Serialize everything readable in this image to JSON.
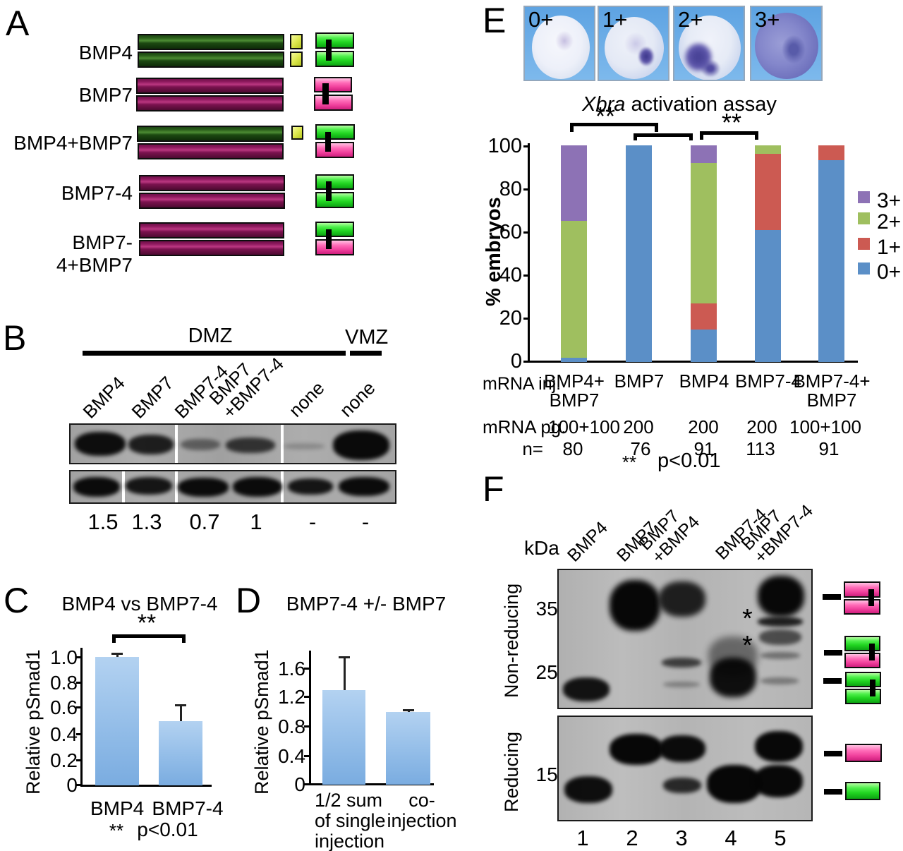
{
  "panel_a": {
    "letter": "A",
    "row_labels": [
      "BMP4",
      "BMP7",
      "BMP4+BMP7",
      "BMP7-4",
      "BMP7-4+BMP7"
    ]
  },
  "panel_b": {
    "letter": "B",
    "dmz_label": "DMZ",
    "vmz_label": "VMZ",
    "lane_labels": [
      "BMP4",
      "BMP7",
      "BMP7-4",
      "BMP7\n+BMP7-4",
      "none",
      "none"
    ],
    "quant_values": [
      "1.5",
      "1.3",
      "0.7",
      "1",
      "-",
      "-"
    ]
  },
  "panel_e": {
    "letter": "E",
    "embryo_labels": [
      "0+",
      "1+",
      "2+",
      "3+"
    ],
    "bracket1_stars": "**",
    "bracket2_stars": "**",
    "inj_label": "mRNA inj.",
    "pg_label": "mRNA pg.",
    "n_label": "n=",
    "pg_values": [
      "100+100",
      "200",
      "200",
      "200",
      "100+100"
    ],
    "n_values": [
      "80",
      "76",
      "91",
      "113",
      "91"
    ],
    "note_stars": "**",
    "note_p": "p<0.01"
  },
  "panel_f": {
    "letter": "F",
    "kda_label": "kDa",
    "lane_labels": [
      "BMP4",
      "BMP7",
      "BMP7\n+BMP4",
      "BMP7-4",
      "BMP7\n+BMP7-4"
    ],
    "marker_35": "35-",
    "marker_25": "25-",
    "marker_15": "15-",
    "nonreducing_label": "Non-reducing",
    "reducing_label": "Reducing",
    "asterisk": "*",
    "lane_numbers": [
      "1",
      "2",
      "3",
      "4",
      "5"
    ]
  },
  "chart_data": [
    {
      "id": "panel_C",
      "type": "bar",
      "title": "BMP4 vs BMP7-4",
      "significance": "**",
      "ylabel": "Relative pSmad1",
      "yticks": [
        "1.0",
        "0.8",
        "0.6",
        "0.4",
        "0.2",
        "0"
      ],
      "ylim": [
        0,
        1.05
      ],
      "categories": [
        "BMP4",
        "BMP7-4"
      ],
      "values": [
        1.0,
        0.5
      ],
      "errors": [
        0.02,
        0.12
      ],
      "note_stars": "**",
      "note_p": "p<0.01",
      "bar_color": "#8ab6e4"
    },
    {
      "id": "panel_D",
      "type": "bar",
      "title": "BMP7-4 +/- BMP7",
      "ylabel": "Relative pSmad1",
      "yticks": [
        "1.6",
        "1.2",
        "0.8",
        "0.4",
        "0"
      ],
      "ylim": [
        0,
        1.8
      ],
      "categories": [
        "1/2 sum\nof single\ninjection",
        "co-\ninjection"
      ],
      "values": [
        1.3,
        1.0
      ],
      "errors": [
        0.45,
        0.02
      ],
      "bar_color": "#8ab6e4"
    },
    {
      "id": "panel_E",
      "type": "stacked_bar",
      "title_italic": "Xbra",
      "title_rest": " activation assay",
      "ylabel": "% embryos",
      "yticks": [
        "100",
        "80",
        "60",
        "40",
        "20",
        "0"
      ],
      "ylim": [
        0,
        100
      ],
      "grid": false,
      "legend_position": "right",
      "legend_order": [
        "3+",
        "2+",
        "1+",
        "0+"
      ],
      "categories": [
        "BMP4+\nBMP7",
        "BMP7",
        "BMP4",
        "BMP7-4",
        "BMP7-4+\nBMP7"
      ],
      "series": [
        {
          "name": "0+",
          "color": "#5b8fc7",
          "values": [
            2,
            100,
            15,
            61,
            93
          ]
        },
        {
          "name": "1+",
          "color": "#cc5a52",
          "values": [
            0,
            0,
            12,
            35,
            7
          ]
        },
        {
          "name": "2+",
          "color": "#9fbf5f",
          "values": [
            63,
            0,
            65,
            4,
            0
          ]
        },
        {
          "name": "3+",
          "color": "#8d72b5",
          "values": [
            35,
            0,
            8,
            0,
            0
          ]
        }
      ]
    }
  ]
}
